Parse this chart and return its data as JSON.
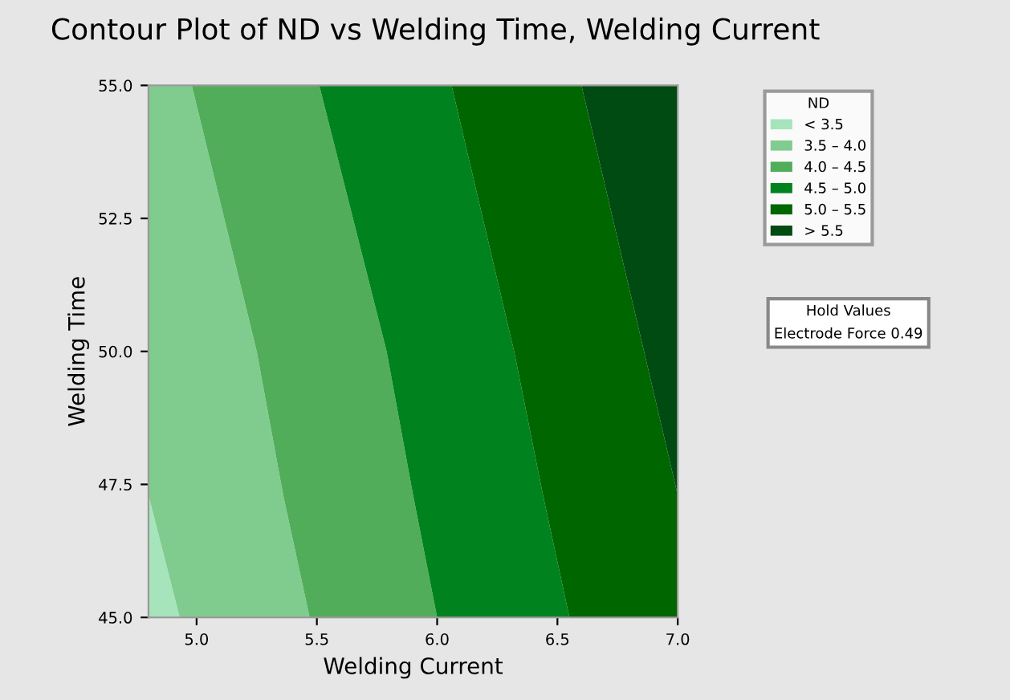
{
  "chart_data": {
    "type": "area",
    "orientation": "horizontal",
    "title": "Contour Plot of ND vs Welding Time, Welding Current",
    "xlabel": "Welding Current",
    "ylabel": "Welding Time",
    "legend_title": "ND",
    "legend": "right",
    "x": [
      45,
      47.3,
      50,
      55
    ],
    "series": [
      {
        "name": "< 3.5",
        "color": "#a6e4bb",
        "values": [
          4.93,
          4.8,
          4.8,
          4.8
        ]
      },
      {
        "name": "3.5 – 4.0",
        "color": "#80cc8f",
        "values": [
          5.47,
          5.36,
          5.25,
          4.98
        ]
      },
      {
        "name": "4.0 – 4.5",
        "color": "#52ad5a",
        "values": [
          6.0,
          5.9,
          5.79,
          5.51
        ]
      },
      {
        "name": "4.5 – 5.0",
        "color": "#00821e",
        "values": [
          6.55,
          6.44,
          6.32,
          6.06
        ]
      },
      {
        "name": "5.0 – 5.5",
        "color": "#006600",
        "values": [
          7.0,
          7.0,
          6.86,
          6.6
        ]
      },
      {
        "name": "> 5.5",
        "color": "#004b12",
        "values": [
          7.0,
          7.0,
          7.0,
          7.0
        ]
      }
    ],
    "xlim": [
      4.8,
      7.0
    ],
    "xticks": [
      {
        "value": 5.0,
        "label": "5.0"
      },
      {
        "value": 5.5,
        "label": "5.5"
      },
      {
        "value": 6.0,
        "label": "6.0"
      },
      {
        "value": 6.5,
        "label": "6.5"
      },
      {
        "value": 7.0,
        "label": "7.0"
      }
    ],
    "ylim": [
      45,
      55
    ],
    "yticks": [
      {
        "value": 45,
        "label": "45.0"
      },
      {
        "value": 47.5,
        "label": "47.5"
      },
      {
        "value": 50,
        "label": "50.0"
      },
      {
        "value": 52.5,
        "label": "52.5"
      },
      {
        "value": 55,
        "label": "55.0"
      }
    ],
    "grid": false,
    "annotations": [
      "Hold Values",
      "Electrode Force 0.49"
    ]
  }
}
